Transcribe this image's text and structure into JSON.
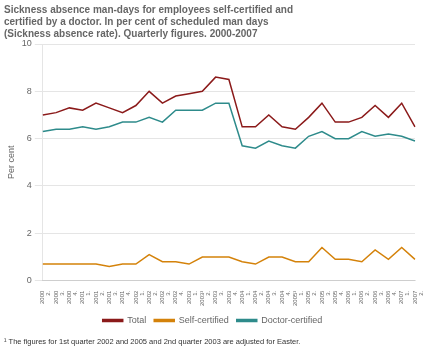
{
  "chart_data": {
    "type": "line",
    "title": [
      "Sickness absence man-days for employees self-certified and",
      "certified by a doctor. In per cent of scheduled man days",
      "(Sickness absence rate). Quarterly figures. 2000-2007"
    ],
    "ylabel": "Per cent",
    "annotations": [
      "¹ The figures for 1st quarter 2002 and 2005 and 2nd quarter 2003 are adjusted for Easter."
    ],
    "categories": [
      [
        "2000",
        "2."
      ],
      [
        "2000",
        "3."
      ],
      [
        "2000",
        "4."
      ],
      [
        "2001",
        "1."
      ],
      [
        "2001",
        "2."
      ],
      [
        "2001",
        "3."
      ],
      [
        "2001",
        "4."
      ],
      [
        "2002",
        "1."
      ],
      [
        "2002",
        "2."
      ],
      [
        "2002",
        "3."
      ],
      [
        "2002",
        "4."
      ],
      [
        "2003",
        "1."
      ],
      [
        "2003¹",
        "2."
      ],
      [
        "2003",
        "3."
      ],
      [
        "2003",
        "4."
      ],
      [
        "2004",
        "1."
      ],
      [
        "2004",
        "2."
      ],
      [
        "2004",
        "3."
      ],
      [
        "2004",
        "4."
      ],
      [
        "2005¹",
        "1."
      ],
      [
        "2005",
        "2."
      ],
      [
        "2005",
        "3."
      ],
      [
        "2005",
        "4."
      ],
      [
        "2006",
        "1."
      ],
      [
        "2006",
        "2."
      ],
      [
        "2006",
        "3."
      ],
      [
        "2006",
        "4."
      ],
      [
        "2007",
        "1."
      ],
      [
        "2007",
        "2."
      ]
    ],
    "series": [
      {
        "name": "Total",
        "color": "#8b1a1a",
        "values": [
          7.0,
          7.1,
          7.3,
          7.2,
          7.5,
          7.3,
          7.1,
          7.4,
          8.0,
          7.5,
          7.8,
          7.9,
          8.0,
          8.6,
          8.5,
          6.5,
          6.5,
          7.0,
          6.5,
          6.4,
          6.9,
          7.5,
          6.7,
          6.7,
          6.9,
          7.4,
          6.9,
          7.5,
          6.5
        ]
      },
      {
        "name": "Self-certified",
        "color": "#d4820a",
        "values": [
          0.7,
          0.7,
          0.7,
          0.7,
          0.7,
          0.6,
          0.7,
          0.7,
          1.1,
          0.8,
          0.8,
          0.7,
          1.0,
          1.0,
          1.0,
          0.8,
          0.7,
          1.0,
          1.0,
          0.8,
          0.8,
          1.4,
          0.9,
          0.9,
          0.8,
          1.3,
          0.9,
          1.4,
          0.9
        ]
      },
      {
        "name": "Doctor-certified",
        "color": "#2e8b8b",
        "values": [
          6.3,
          6.4,
          6.4,
          6.5,
          6.4,
          6.5,
          6.7,
          6.7,
          6.9,
          6.7,
          7.2,
          7.2,
          7.2,
          7.5,
          7.5,
          5.7,
          5.6,
          5.9,
          5.7,
          5.6,
          6.1,
          6.3,
          6.0,
          6.0,
          6.3,
          6.1,
          6.2,
          6.1,
          5.9
        ]
      }
    ],
    "ylim": [
      0,
      10
    ],
    "yticks": [
      0,
      2,
      4,
      6,
      8,
      10
    ],
    "grid": true,
    "legend": "bottom"
  }
}
